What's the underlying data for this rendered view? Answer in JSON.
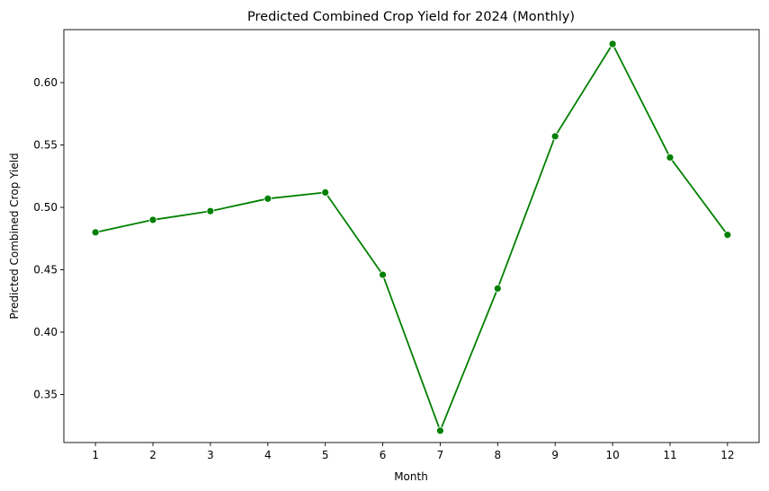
{
  "chart_data": {
    "type": "line",
    "title": "Predicted Combined Crop Yield for 2024 (Monthly)",
    "xlabel": "Month",
    "ylabel": "Predicted Combined Crop Yield",
    "x": [
      1,
      2,
      3,
      4,
      5,
      6,
      7,
      8,
      9,
      10,
      11,
      12
    ],
    "x_tick_labels": [
      "1",
      "2",
      "3",
      "4",
      "5",
      "6",
      "7",
      "8",
      "9",
      "10",
      "11",
      "12"
    ],
    "y_ticks": [
      0.35,
      0.4,
      0.45,
      0.5,
      0.55,
      0.6
    ],
    "y_tick_labels": [
      "0.35",
      "0.40",
      "0.45",
      "0.50",
      "0.55",
      "0.60"
    ],
    "ylim": [
      0.3115,
      0.6425
    ],
    "xlim": [
      0.45,
      12.55
    ],
    "grid": false,
    "series": [
      {
        "values": [
          0.48,
          0.49,
          0.497,
          0.507,
          0.512,
          0.446,
          0.321,
          0.435,
          0.557,
          0.631,
          0.54,
          0.478
        ],
        "color": "#008000",
        "marker": "circle"
      }
    ]
  }
}
